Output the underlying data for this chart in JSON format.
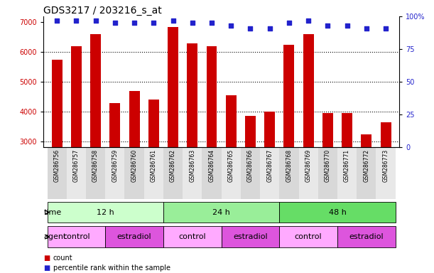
{
  "title": "GDS3217 / 203216_s_at",
  "samples": [
    "GSM286756",
    "GSM286757",
    "GSM286758",
    "GSM286759",
    "GSM286760",
    "GSM286761",
    "GSM286762",
    "GSM286763",
    "GSM286764",
    "GSM286765",
    "GSM286766",
    "GSM286767",
    "GSM286768",
    "GSM286769",
    "GSM286770",
    "GSM286771",
    "GSM286772",
    "GSM286773"
  ],
  "counts": [
    5750,
    6200,
    6600,
    4300,
    4700,
    4400,
    6850,
    6300,
    6200,
    4550,
    3850,
    4000,
    6250,
    6600,
    3950,
    3950,
    3250,
    3650
  ],
  "percentiles": [
    97,
    97,
    97,
    95,
    95,
    95,
    97,
    95,
    95,
    93,
    91,
    91,
    95,
    97,
    93,
    93,
    91,
    91
  ],
  "bar_color": "#cc0000",
  "dot_color": "#2222cc",
  "ylim_left": [
    2800,
    7200
  ],
  "ylim_right": [
    0,
    100
  ],
  "yticks_left": [
    3000,
    4000,
    5000,
    6000,
    7000
  ],
  "yticks_right": [
    0,
    25,
    50,
    75,
    100
  ],
  "grid_lines_at": [
    3000,
    4000,
    5000,
    6000
  ],
  "time_groups": [
    {
      "label": "12 h",
      "start": 0,
      "end": 6,
      "color": "#ccffcc"
    },
    {
      "label": "24 h",
      "start": 6,
      "end": 12,
      "color": "#99ee99"
    },
    {
      "label": "48 h",
      "start": 12,
      "end": 18,
      "color": "#66dd66"
    }
  ],
  "agent_groups": [
    {
      "label": "control",
      "start": 0,
      "end": 3,
      "color": "#ffaaff"
    },
    {
      "label": "estradiol",
      "start": 3,
      "end": 6,
      "color": "#dd55dd"
    },
    {
      "label": "control",
      "start": 6,
      "end": 9,
      "color": "#ffaaff"
    },
    {
      "label": "estradiol",
      "start": 9,
      "end": 12,
      "color": "#dd55dd"
    },
    {
      "label": "control",
      "start": 12,
      "end": 15,
      "color": "#ffaaff"
    },
    {
      "label": "estradiol",
      "start": 15,
      "end": 18,
      "color": "#dd55dd"
    }
  ],
  "legend_count_label": "count",
  "legend_pct_label": "percentile rank within the sample",
  "title_fontsize": 10,
  "axis_tick_fontsize": 7,
  "annot_fontsize": 8,
  "sample_fontsize": 5.5,
  "legend_fontsize": 7
}
